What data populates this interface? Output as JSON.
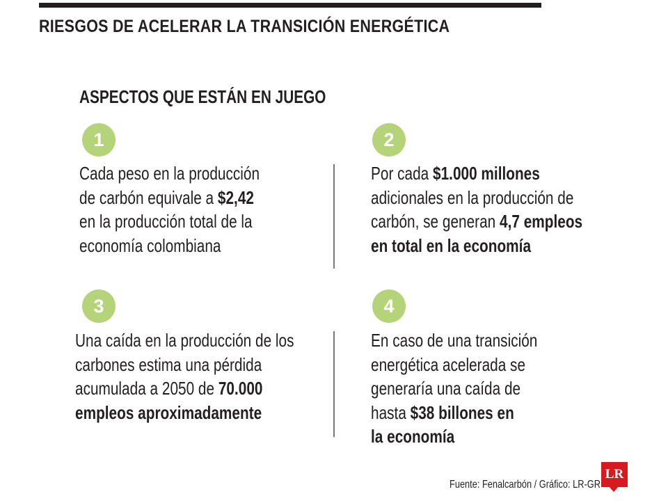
{
  "header": {
    "title": "RIESGOS DE ACELERAR LA TRANSICIÓN ENERGÉTICA"
  },
  "section": {
    "title": "ASPECTOS QUE ESTÁN EN JUEGO"
  },
  "items": [
    {
      "number": "1",
      "lines": [
        [
          {
            "t": "Cada peso en la producción",
            "b": false
          }
        ],
        [
          {
            "t": "de carbón equivale a ",
            "b": false
          },
          {
            "t": "$2,42",
            "b": true
          }
        ],
        [
          {
            "t": "en la producción total de la",
            "b": false
          }
        ],
        [
          {
            "t": "economía colombiana",
            "b": false
          }
        ]
      ]
    },
    {
      "number": "2",
      "lines": [
        [
          {
            "t": "Por cada ",
            "b": false
          },
          {
            "t": "$1.000 millones",
            "b": true
          }
        ],
        [
          {
            "t": "adicionales en la producción de",
            "b": false
          }
        ],
        [
          {
            "t": "carbón, se generan ",
            "b": false
          },
          {
            "t": "4,7 empleos",
            "b": true
          }
        ],
        [
          {
            "t": "en total en la economía",
            "b": true
          }
        ]
      ]
    },
    {
      "number": "3",
      "lines": [
        [
          {
            "t": "Una caída en la producción de los",
            "b": false
          }
        ],
        [
          {
            "t": "carbones estima una pérdida",
            "b": false
          }
        ],
        [
          {
            "t": "acumulada a 2050 de ",
            "b": false
          },
          {
            "t": "70.000",
            "b": true
          }
        ],
        [
          {
            "t": "empleos aproximadamente",
            "b": true
          }
        ]
      ]
    },
    {
      "number": "4",
      "lines": [
        [
          {
            "t": "En caso de una transición",
            "b": false
          }
        ],
        [
          {
            "t": "energética acelerada se",
            "b": false
          }
        ],
        [
          {
            "t": "generaría una caída de",
            "b": false
          }
        ],
        [
          {
            "t": "hasta ",
            "b": false
          },
          {
            "t": "$38 billones en",
            "b": true
          }
        ],
        [
          {
            "t": "la economía",
            "b": true
          }
        ]
      ]
    }
  ],
  "footer": {
    "source": "Fuente: Fenalcarbón / Gráfico: LR-GR",
    "logo": "LR"
  },
  "colors": {
    "badge": "#b5d47a",
    "logo": "#d71920",
    "text": "#231f20"
  }
}
